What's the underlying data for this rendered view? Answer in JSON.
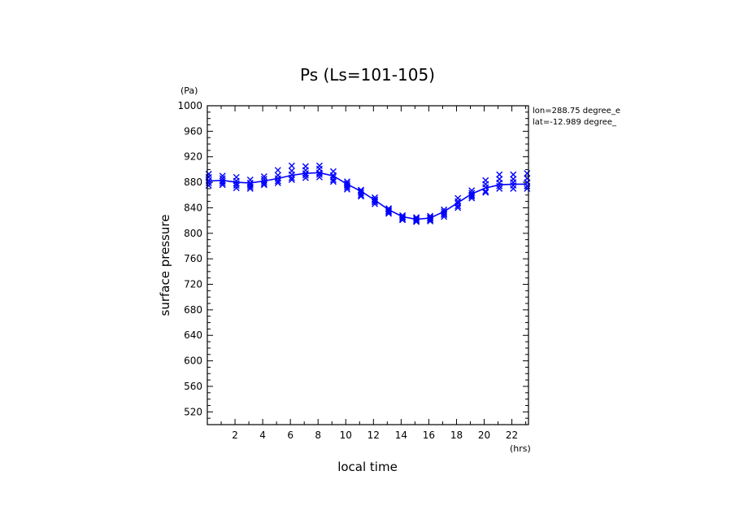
{
  "chart_data": {
    "type": "line",
    "title": "Ps (Ls=101-105)",
    "xlabel": "local time",
    "ylabel": "surface pressure",
    "xunit": "(hrs)",
    "yunit": "(Pa)",
    "xlim": [
      0,
      23.2
    ],
    "ylim": [
      500,
      1000
    ],
    "xticks": [
      "2",
      "4",
      "6",
      "8",
      "10",
      "12",
      "14",
      "16",
      "18",
      "20",
      "22"
    ],
    "yticks": [
      "520",
      "560",
      "600",
      "640",
      "680",
      "720",
      "760",
      "800",
      "840",
      "880",
      "920",
      "960",
      "1000"
    ],
    "annotations": [
      "lon=288.75 degree_e",
      "lat=-12.989 degree_"
    ],
    "series_color": "#0000ff",
    "series": [
      {
        "style": "line",
        "x": [
          0.1,
          1.1,
          2.1,
          3.1,
          4.1,
          5.1,
          6.1,
          7.1,
          8.1,
          9.1,
          10.1,
          11.1,
          12.1,
          13.1,
          14.1,
          15.1,
          16.1,
          17.1,
          18.1,
          19.1,
          20.1,
          21.1,
          22.1,
          23.1
        ],
        "y": [
          882,
          883,
          880,
          879,
          882,
          886,
          891,
          894,
          895,
          890,
          877,
          866,
          852,
          837,
          826,
          822,
          824,
          834,
          848,
          862,
          871,
          876,
          877,
          877
        ]
      },
      {
        "style": "markers",
        "marker": "x",
        "x": [
          0.1,
          0.1,
          0.1,
          0.1,
          0.1,
          1.1,
          1.1,
          1.1,
          1.1,
          1.1,
          2.1,
          2.1,
          2.1,
          2.1,
          2.1,
          3.1,
          3.1,
          3.1,
          3.1,
          3.1,
          4.1,
          4.1,
          4.1,
          4.1,
          4.1,
          5.1,
          5.1,
          5.1,
          5.1,
          5.1,
          6.1,
          6.1,
          6.1,
          6.1,
          6.1,
          7.1,
          7.1,
          7.1,
          7.1,
          7.1,
          8.1,
          8.1,
          8.1,
          8.1,
          8.1,
          9.1,
          9.1,
          9.1,
          9.1,
          9.1,
          10.1,
          10.1,
          10.1,
          10.1,
          10.1,
          11.1,
          11.1,
          11.1,
          11.1,
          11.1,
          12.1,
          12.1,
          12.1,
          12.1,
          12.1,
          13.1,
          13.1,
          13.1,
          13.1,
          13.1,
          14.1,
          14.1,
          14.1,
          14.1,
          14.1,
          15.1,
          15.1,
          15.1,
          15.1,
          15.1,
          16.1,
          16.1,
          16.1,
          16.1,
          16.1,
          17.1,
          17.1,
          17.1,
          17.1,
          17.1,
          18.1,
          18.1,
          18.1,
          18.1,
          18.1,
          19.1,
          19.1,
          19.1,
          19.1,
          19.1,
          20.1,
          20.1,
          20.1,
          20.1,
          20.1,
          21.1,
          21.1,
          21.1,
          21.1,
          21.1,
          22.1,
          22.1,
          22.1,
          22.1,
          22.1,
          23.1,
          23.1,
          23.1,
          23.1,
          23.1
        ],
        "y": [
          893,
          888,
          883,
          879,
          875,
          890,
          886,
          882,
          879,
          876,
          888,
          882,
          878,
          875,
          871,
          884,
          879,
          876,
          873,
          870,
          889,
          885,
          881,
          878,
          876,
          899,
          891,
          886,
          882,
          879,
          906,
          898,
          892,
          887,
          884,
          905,
          899,
          894,
          891,
          887,
          906,
          901,
          895,
          892,
          888,
          897,
          891,
          888,
          884,
          881,
          881,
          878,
          875,
          872,
          869,
          868,
          866,
          863,
          860,
          858,
          856,
          853,
          851,
          849,
          846,
          839,
          837,
          835,
          833,
          831,
          828,
          826,
          824,
          822,
          821,
          825,
          823,
          821,
          819,
          818,
          827,
          825,
          823,
          821,
          819,
          837,
          834,
          831,
          829,
          826,
          855,
          850,
          847,
          843,
          840,
          867,
          863,
          860,
          858,
          855,
          883,
          877,
          872,
          866,
          864,
          892,
          885,
          879,
          874,
          870,
          892,
          885,
          880,
          875,
          870,
          894,
          886,
          880,
          874,
          870
        ]
      }
    ]
  }
}
